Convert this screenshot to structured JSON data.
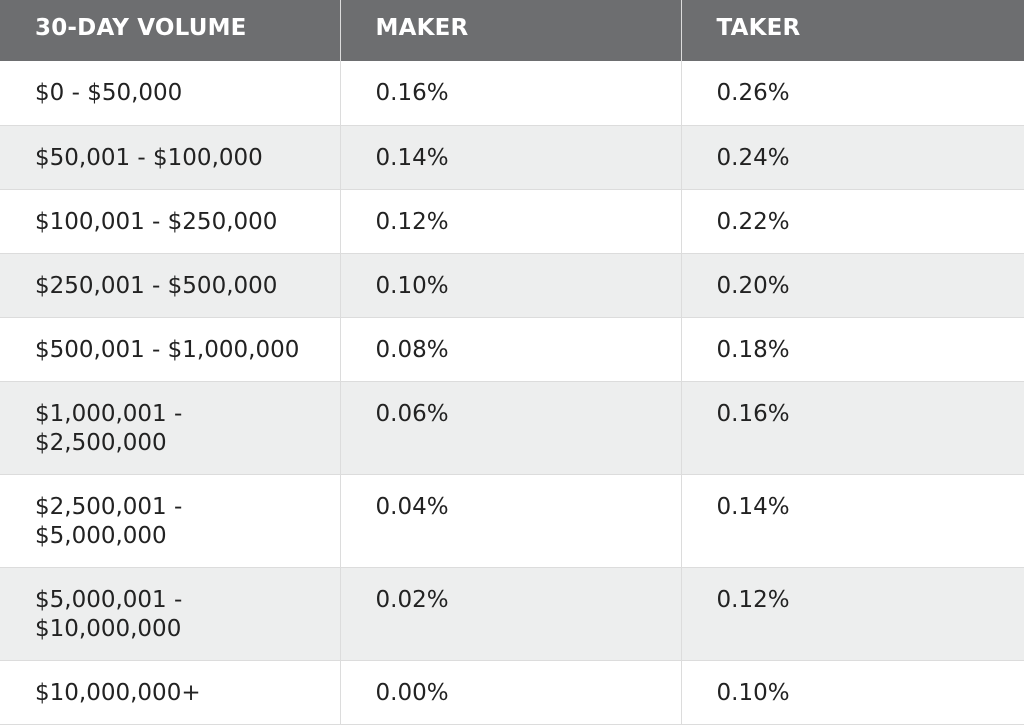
{
  "table": {
    "headers": [
      "30-DAY VOLUME",
      "MAKER",
      "TAKER"
    ],
    "rows": [
      {
        "volume": "$0 - $50,000",
        "maker": "0.16%",
        "taker": "0.26%"
      },
      {
        "volume": "$50,001 - $100,000",
        "maker": "0.14%",
        "taker": "0.24%"
      },
      {
        "volume": "$100,001 - $250,000",
        "maker": "0.12%",
        "taker": "0.22%"
      },
      {
        "volume": "$250,001 - $500,000",
        "maker": "0.10%",
        "taker": "0.20%"
      },
      {
        "volume": "$500,001 - $1,000,000",
        "maker": "0.08%",
        "taker": "0.18%"
      },
      {
        "volume": "$1,000,001 - $2,500,000",
        "maker": "0.06%",
        "taker": "0.16%"
      },
      {
        "volume": "$2,500,001 - $5,000,000",
        "maker": "0.04%",
        "taker": "0.14%"
      },
      {
        "volume": "$5,000,001 - $10,000,000",
        "maker": "0.02%",
        "taker": "0.12%"
      },
      {
        "volume": "$10,000,000+",
        "maker": "0.00%",
        "taker": "0.10%"
      }
    ]
  },
  "colors": {
    "header_background": "#6d6e70",
    "header_text": "#ffffff",
    "stripe_background": "#edeeee",
    "row_background": "#ffffff",
    "border": "#dcdcdc"
  }
}
